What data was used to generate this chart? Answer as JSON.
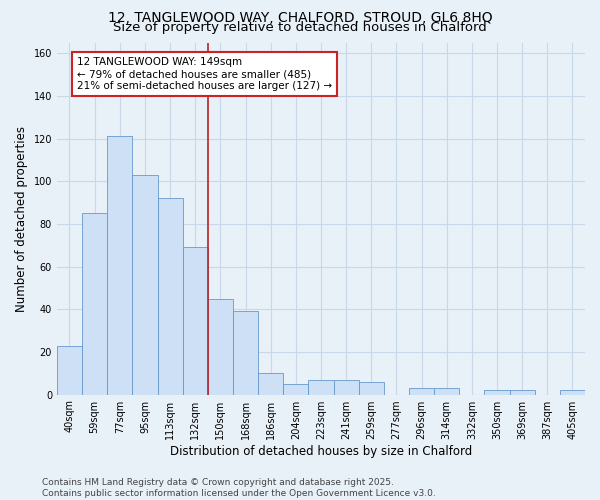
{
  "title": "12, TANGLEWOOD WAY, CHALFORD, STROUD, GL6 8HQ",
  "subtitle": "Size of property relative to detached houses in Chalford",
  "xlabel": "Distribution of detached houses by size in Chalford",
  "ylabel": "Number of detached properties",
  "categories": [
    "40sqm",
    "59sqm",
    "77sqm",
    "95sqm",
    "113sqm",
    "132sqm",
    "150sqm",
    "168sqm",
    "186sqm",
    "204sqm",
    "223sqm",
    "241sqm",
    "259sqm",
    "277sqm",
    "296sqm",
    "314sqm",
    "332sqm",
    "350sqm",
    "369sqm",
    "387sqm",
    "405sqm"
  ],
  "values": [
    23,
    85,
    121,
    103,
    92,
    69,
    45,
    39,
    10,
    5,
    7,
    7,
    6,
    0,
    3,
    3,
    0,
    2,
    2,
    0,
    2
  ],
  "bar_color": "#cde0f5",
  "bar_edge_color": "#6699cc",
  "grid_color": "#c8d8e8",
  "background_color": "#e8f0f8",
  "vline_color": "#bb2222",
  "annotation_text": "12 TANGLEWOOD WAY: 149sqm\n← 79% of detached houses are smaller (485)\n21% of semi-detached houses are larger (127) →",
  "annotation_box_color": "#ffffff",
  "annotation_box_edge": "#cc2222",
  "ylim": [
    0,
    165
  ],
  "yticks": [
    0,
    20,
    40,
    60,
    80,
    100,
    120,
    140,
    160
  ],
  "title_fontsize": 10,
  "subtitle_fontsize": 9.5,
  "axis_label_fontsize": 8.5,
  "tick_fontsize": 7,
  "annotation_fontsize": 7.5,
  "footer": "Contains HM Land Registry data © Crown copyright and database right 2025.\nContains public sector information licensed under the Open Government Licence v3.0.",
  "footer_fontsize": 6.5
}
